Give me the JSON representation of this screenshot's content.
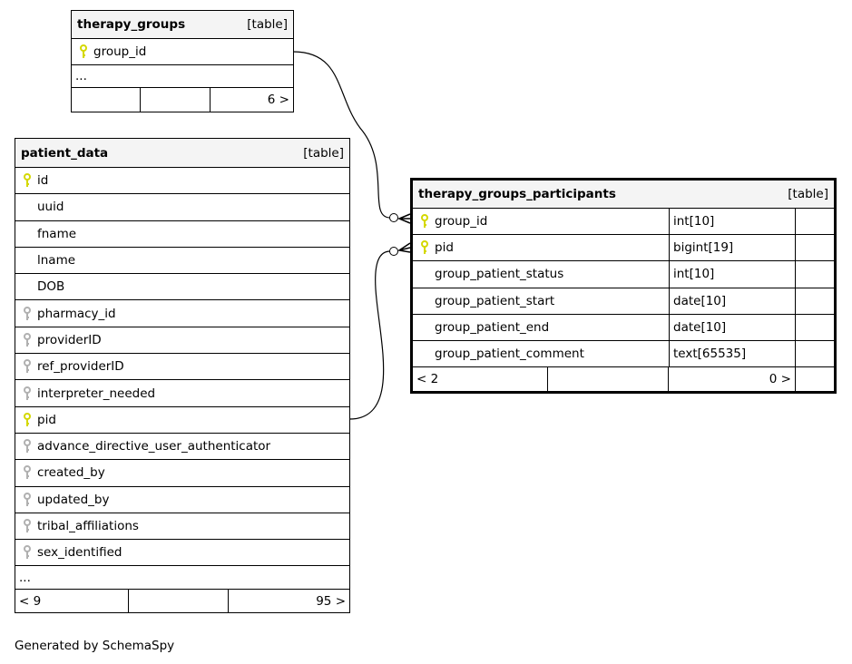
{
  "colors": {
    "primary_key": "#d4d800",
    "foreign_key": "#b0b0b0",
    "header_bg": "#f4f4f4"
  },
  "therapy_groups": {
    "name": "therapy_groups",
    "kind": "[table]",
    "columns": [
      {
        "name": "group_id",
        "key": "primary"
      }
    ],
    "more": "...",
    "footer": [
      "",
      "",
      "6 >"
    ]
  },
  "patient_data": {
    "name": "patient_data",
    "kind": "[table]",
    "columns": [
      {
        "name": "id",
        "key": "primary"
      },
      {
        "name": "uuid",
        "key": "none"
      },
      {
        "name": "fname",
        "key": "none"
      },
      {
        "name": "lname",
        "key": "none"
      },
      {
        "name": "DOB",
        "key": "none"
      },
      {
        "name": "pharmacy_id",
        "key": "foreign"
      },
      {
        "name": "providerID",
        "key": "foreign"
      },
      {
        "name": "ref_providerID",
        "key": "foreign"
      },
      {
        "name": "interpreter_needed",
        "key": "foreign"
      },
      {
        "name": "pid",
        "key": "primary"
      },
      {
        "name": "advance_directive_user_authenticator",
        "key": "foreign"
      },
      {
        "name": "created_by",
        "key": "foreign"
      },
      {
        "name": "updated_by",
        "key": "foreign"
      },
      {
        "name": "tribal_affiliations",
        "key": "foreign"
      },
      {
        "name": "sex_identified",
        "key": "foreign"
      }
    ],
    "more": "...",
    "footer": [
      "< 9",
      "",
      "95 >"
    ]
  },
  "therapy_groups_participants": {
    "name": "therapy_groups_participants",
    "kind": "[table]",
    "columns": [
      {
        "name": "group_id",
        "type": "int[10]",
        "key": "primary"
      },
      {
        "name": "pid",
        "type": "bigint[19]",
        "key": "primary"
      },
      {
        "name": "group_patient_status",
        "type": "int[10]",
        "key": "none"
      },
      {
        "name": "group_patient_start",
        "type": "date[10]",
        "key": "none"
      },
      {
        "name": "group_patient_end",
        "type": "date[10]",
        "key": "none"
      },
      {
        "name": "group_patient_comment",
        "type": "text[65535]",
        "key": "none"
      }
    ],
    "footer": [
      "< 2",
      "",
      "0 >"
    ]
  },
  "credit": "Generated by SchemaSpy"
}
